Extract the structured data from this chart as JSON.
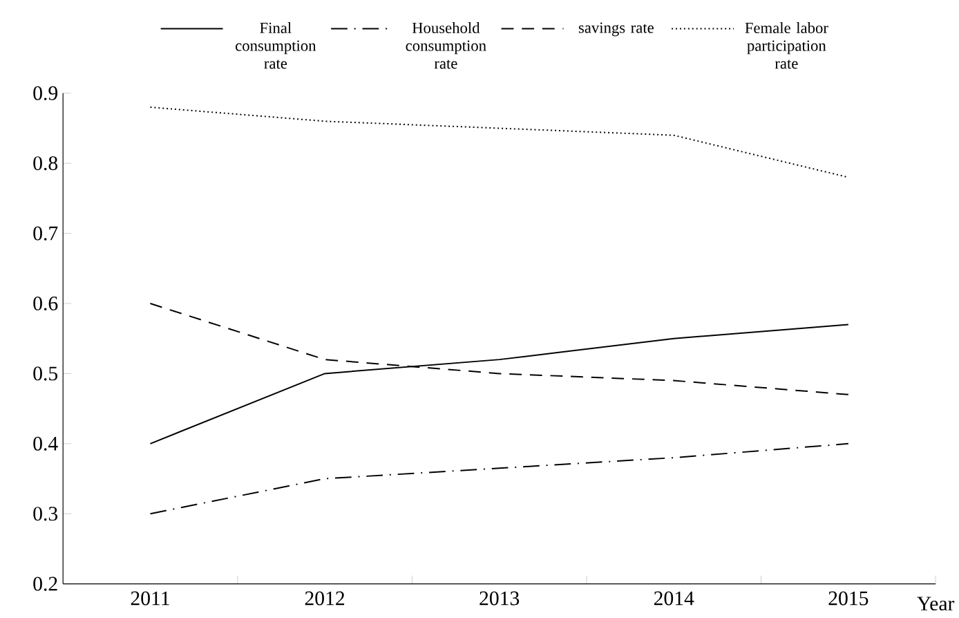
{
  "chart_data": {
    "type": "line",
    "xlabel": "Year",
    "categories": [
      "2011",
      "2012",
      "2013",
      "2014",
      "2015"
    ],
    "series": [
      {
        "name": "Final consumption rate",
        "color": "#000000",
        "line_style": "solid",
        "values": [
          0.4,
          0.5,
          0.52,
          0.55,
          0.57
        ]
      },
      {
        "name": "Household consumption rate",
        "color": "#000000",
        "line_style": "dashdot",
        "values": [
          0.3,
          0.35,
          0.365,
          0.38,
          0.4
        ]
      },
      {
        "name": "savings rate",
        "color": "#000000",
        "line_style": "dashed",
        "values": [
          0.6,
          0.52,
          0.5,
          0.49,
          0.47
        ]
      },
      {
        "name": "Female labor participation rate",
        "color": "#000000",
        "line_style": "dotted",
        "values": [
          0.88,
          0.86,
          0.85,
          0.84,
          0.78
        ]
      }
    ],
    "ylim": [
      0.2,
      0.9
    ],
    "yticks": [
      0.2,
      0.3,
      0.4,
      0.5,
      0.6,
      0.7,
      0.8,
      0.9
    ],
    "legend": "top",
    "grid": false
  }
}
